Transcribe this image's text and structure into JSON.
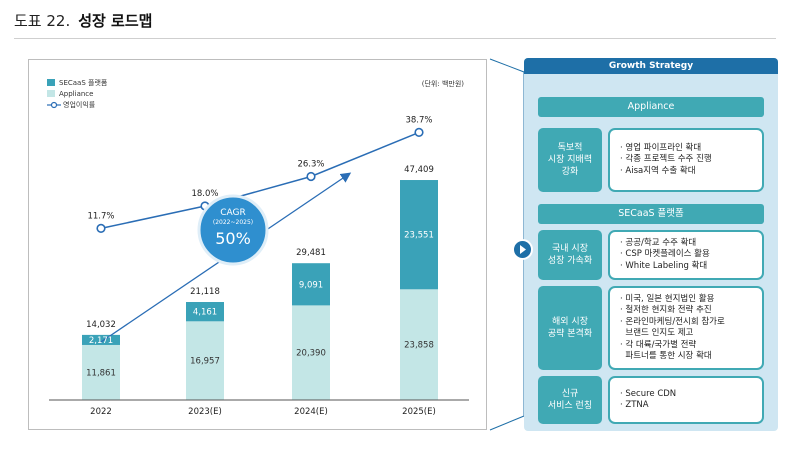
{
  "header": {
    "label": "도표 22.",
    "title": "성장 로드맵"
  },
  "colors": {
    "secaas": "#3aa2b8",
    "appliance": "#c3e6e6",
    "line": "#2a6db5",
    "accent": "#1e6fa7",
    "teal": "#40a9b4"
  },
  "chart_data": {
    "type": "bar",
    "stacked": true,
    "categories": [
      "2022",
      "2023(E)",
      "2024(E)",
      "2025(E)"
    ],
    "series": [
      {
        "name": "Appliance",
        "values": [
          11861,
          16957,
          20390,
          23858
        ]
      },
      {
        "name": "SECaaS 플랫폼",
        "values": [
          2171,
          4161,
          9091,
          23551
        ]
      }
    ],
    "totals": [
      14032,
      21118,
      29481,
      47409
    ],
    "total_labels": [
      "14,032",
      "21,118",
      "29,481",
      "47,409"
    ],
    "appliance_labels": [
      "11,861",
      "16,957",
      "20,390",
      "23,858"
    ],
    "secaas_labels": [
      "2,171",
      "4,161",
      "9,091",
      "23,551"
    ],
    "line_series": {
      "name": "영업이익률",
      "values": [
        11.7,
        18.0,
        26.3,
        38.7
      ],
      "labels": [
        "11.7%",
        "18.0%",
        "26.3%",
        "38.7%"
      ]
    },
    "unit": "(단위: 백만원)",
    "cagr": {
      "title": "CAGR",
      "period": "(2022~2025)",
      "value": "50%"
    },
    "ylim": [
      0,
      50000
    ],
    "legend_position": "top-left"
  },
  "strategy": {
    "title": "Growth Strategy",
    "appliance_section": "Appliance",
    "secaas_section": "SECaaS 플랫폼",
    "blocks": [
      {
        "label": [
          "독보적",
          "시장 지배력",
          "강화"
        ],
        "items": [
          "· 영업 파이프라인 확대",
          "· 각종 프로젝트 수주 진행",
          "· Aisa지역 수출 확대"
        ]
      },
      {
        "label": [
          "국내 시장",
          "성장 가속화"
        ],
        "items": [
          "· 공공/학교 수주 확대",
          "· CSP 마켓플레이스 활용",
          "· White Labeling 확대"
        ]
      },
      {
        "label": [
          "해외 시장",
          "공략 본격화"
        ],
        "items": [
          "· 미국, 일본 현지법인 활용",
          "· 철저한 현지화 전략 추진",
          "· 온라인마케팅/전시회 참가로",
          "  브랜드 인지도 제고",
          "· 각 대륙/국가별 전략",
          "  파트너를 통한 시장 확대"
        ]
      },
      {
        "label": [
          "신규",
          "서비스 런칭"
        ],
        "items": [
          "· Secure CDN",
          "· ZTNA"
        ]
      }
    ]
  }
}
